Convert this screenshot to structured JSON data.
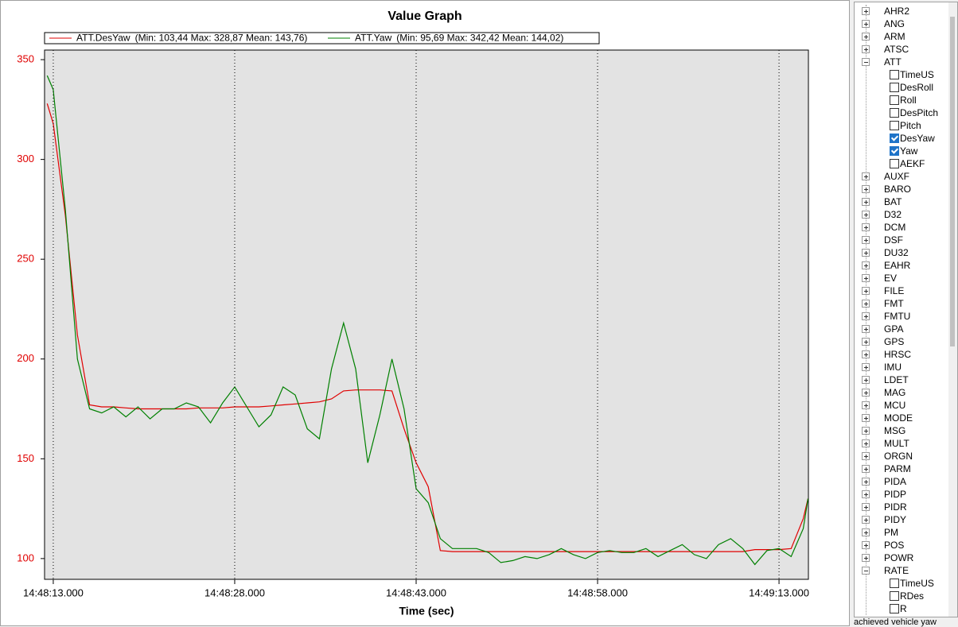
{
  "chart_data": {
    "type": "line",
    "title": "Value Graph",
    "x_label": "Time (sec)",
    "x": [
      -0.5,
      0,
      1,
      2,
      3,
      4,
      5,
      6,
      7,
      8,
      9,
      10,
      11,
      12,
      13,
      14,
      15,
      16,
      17,
      18,
      19,
      20,
      21,
      22,
      23,
      24,
      25,
      26,
      27,
      28,
      29,
      30,
      31,
      32,
      33,
      34,
      35,
      36,
      37,
      38,
      39,
      40,
      41,
      42,
      43,
      44,
      45,
      46,
      47,
      48,
      49,
      50,
      51,
      52,
      53,
      54,
      55,
      56,
      57,
      58,
      59,
      60,
      61,
      62,
      62.4
    ],
    "series": [
      {
        "name": "ATT.DesYaw",
        "stats": "(Min: 103,44 Max: 328,87 Mean: 143,76)",
        "color": "#e00000",
        "values": [
          328,
          318,
          272,
          212,
          177,
          176,
          176,
          175.5,
          175,
          175,
          175,
          175,
          175,
          175.5,
          175.5,
          175.5,
          176,
          176,
          176,
          176.5,
          177,
          177.5,
          178,
          178.5,
          180,
          184,
          184.5,
          184.5,
          184.5,
          184,
          165,
          148,
          136,
          104,
          103.5,
          103.5,
          103.5,
          103.5,
          103.5,
          103.5,
          103.5,
          103.5,
          103.5,
          103.5,
          103.5,
          103.5,
          103.5,
          103.5,
          103.5,
          103.5,
          103.5,
          103.5,
          103.5,
          103.5,
          103.5,
          103.5,
          103.5,
          103.5,
          103.5,
          104.5,
          104.5,
          104.5,
          105,
          120,
          130
        ]
      },
      {
        "name": "ATT.Yaw",
        "stats": "(Min: 95,69 Max: 342,42 Mean: 144,02)",
        "color": "#008000",
        "values": [
          342,
          335,
          275,
          200,
          175,
          173,
          176,
          171,
          176,
          170,
          175,
          175,
          178,
          176,
          168,
          178,
          186,
          176,
          166,
          172,
          186,
          182,
          165,
          160,
          195,
          218,
          195,
          148,
          172,
          200,
          175,
          135,
          128,
          110,
          105,
          105,
          105,
          103,
          98,
          99,
          101,
          100,
          102,
          105,
          102,
          100,
          103,
          104,
          103,
          103,
          105,
          101,
          104,
          107,
          102,
          100,
          107,
          110,
          105,
          97,
          104,
          105,
          101,
          115,
          130
        ]
      }
    ],
    "xlim": [
      -0.72,
      62.43
    ],
    "xticks": [
      {
        "value": 0,
        "label": "14:48:13.000"
      },
      {
        "value": 15,
        "label": "14:48:28.000"
      },
      {
        "value": 30,
        "label": "14:48:43.000"
      },
      {
        "value": 45,
        "label": "14:48:58.000"
      },
      {
        "value": 60,
        "label": "14:49:13.000"
      }
    ],
    "ylim": [
      89.6,
      354.8
    ],
    "yticks": [
      100,
      150,
      200,
      250,
      300,
      350
    ],
    "grid": true
  },
  "tree": [
    {
      "label": "AHR2"
    },
    {
      "label": "ANG"
    },
    {
      "label": "ARM"
    },
    {
      "label": "ATSC"
    },
    {
      "label": "ATT",
      "children": [
        {
          "label": "TimeUS",
          "checked": false
        },
        {
          "label": "DesRoll",
          "checked": false
        },
        {
          "label": "Roll",
          "checked": false
        },
        {
          "label": "DesPitch",
          "checked": false
        },
        {
          "label": "Pitch",
          "checked": false
        },
        {
          "label": "DesYaw",
          "checked": true
        },
        {
          "label": "Yaw",
          "checked": true
        },
        {
          "label": "AEKF",
          "checked": false
        }
      ]
    },
    {
      "label": "AUXF"
    },
    {
      "label": "BARO"
    },
    {
      "label": "BAT"
    },
    {
      "label": "D32"
    },
    {
      "label": "DCM"
    },
    {
      "label": "DSF"
    },
    {
      "label": "DU32"
    },
    {
      "label": "EAHR"
    },
    {
      "label": "EV"
    },
    {
      "label": "FILE"
    },
    {
      "label": "FMT"
    },
    {
      "label": "FMTU"
    },
    {
      "label": "GPA"
    },
    {
      "label": "GPS"
    },
    {
      "label": "HRSC"
    },
    {
      "label": "IMU"
    },
    {
      "label": "LDET"
    },
    {
      "label": "MAG"
    },
    {
      "label": "MCU"
    },
    {
      "label": "MODE"
    },
    {
      "label": "MSG"
    },
    {
      "label": "MULT"
    },
    {
      "label": "ORGN"
    },
    {
      "label": "PARM"
    },
    {
      "label": "PIDA"
    },
    {
      "label": "PIDP"
    },
    {
      "label": "PIDR"
    },
    {
      "label": "PIDY"
    },
    {
      "label": "PM"
    },
    {
      "label": "POS"
    },
    {
      "label": "POWR"
    },
    {
      "label": "RATE",
      "children": [
        {
          "label": "TimeUS",
          "checked": false
        },
        {
          "label": "RDes",
          "checked": false
        },
        {
          "label": "R",
          "checked": false
        }
      ]
    }
  ],
  "status": "achieved vehicle yaw"
}
